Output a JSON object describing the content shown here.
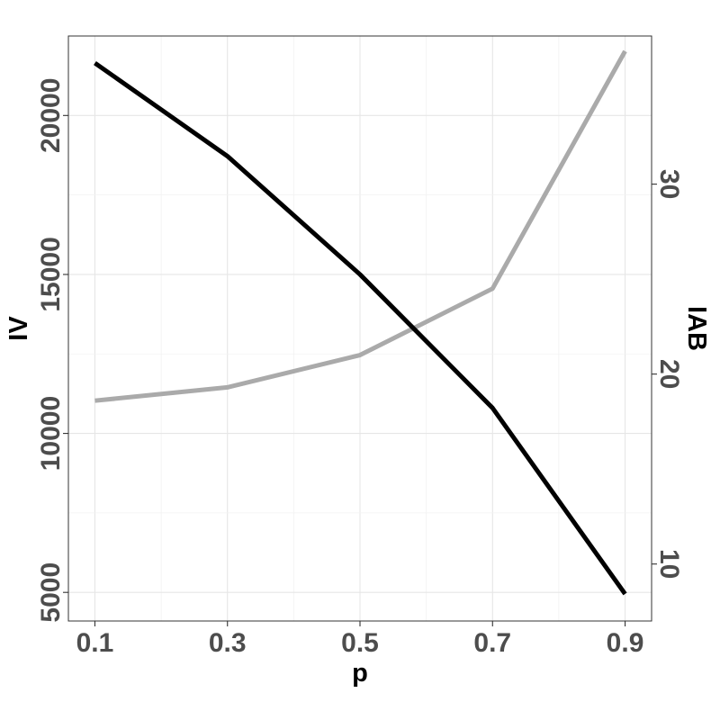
{
  "chart_data": {
    "type": "line",
    "title": "",
    "xlabel": "p",
    "ylabel_left": "IV",
    "ylabel_right": "IAB",
    "x": [
      0.1,
      0.3,
      0.5,
      0.7,
      0.9
    ],
    "x_tick_labels": [
      "0.1",
      "0.3",
      "0.5",
      "0.7",
      "0.9"
    ],
    "xlim": [
      0.06,
      0.94
    ],
    "ylim_left": [
      4100,
      22500
    ],
    "ylim_right": [
      7,
      37.8
    ],
    "y_left_ticks": [
      5000,
      10000,
      15000,
      20000
    ],
    "y_left_tick_labels": [
      "5000",
      "10000",
      "15000",
      "20000"
    ],
    "y_right_ticks": [
      10,
      20,
      30
    ],
    "y_right_tick_labels": [
      "10",
      "20",
      "30"
    ],
    "grid": true,
    "legend": "none",
    "series": [
      {
        "axis": "left",
        "color": "#000000",
        "values": [
          21650,
          18720,
          15000,
          10800,
          4950
        ]
      },
      {
        "axis": "right",
        "color": "#aaaaaa",
        "values": [
          18.6,
          19.3,
          21.0,
          24.5,
          37.0
        ]
      }
    ]
  }
}
